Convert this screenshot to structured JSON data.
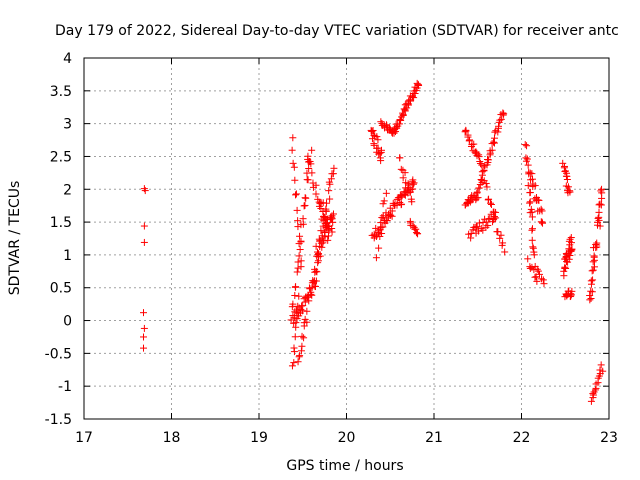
{
  "chart_data": {
    "type": "scatter",
    "title": "Day 179 of 2022, Sidereal Day-to-day VTEC variation (SDTVAR) for receiver antc",
    "xlabel": "GPS time / hours",
    "ylabel": "SDTVAR / TECUs",
    "xlim": [
      17,
      23
    ],
    "ylim": [
      -1.5,
      4
    ],
    "xticks": [
      "17",
      "18",
      "19",
      "20",
      "21",
      "22",
      "23"
    ],
    "yticks": [
      "-1.5",
      "-1",
      "-0.5",
      "0",
      "0.5",
      "1",
      "1.5",
      "2",
      "2.5",
      "3",
      "3.5",
      "4"
    ],
    "grid": true,
    "marker_color": "#ff0000",
    "series": [
      {
        "name": "SDTVAR",
        "points": [
          [
            17.69,
            2.01
          ],
          [
            17.7,
            1.98
          ],
          [
            17.69,
            1.44
          ],
          [
            17.69,
            1.19
          ],
          [
            17.68,
            0.12
          ],
          [
            17.69,
            -0.12
          ],
          [
            17.68,
            -0.25
          ],
          [
            17.68,
            -0.42
          ]
        ],
        "segments": [
          {
            "t0": 19.37,
            "t1": 19.6,
            "y0": 0.05,
            "y1": 2.6,
            "n": 28,
            "s": 0.25
          },
          {
            "t0": 19.38,
            "t1": 19.48,
            "y0": 2.75,
            "y1": 0.8,
            "n": 14,
            "s": 0.2
          },
          {
            "t0": 19.38,
            "t1": 19.45,
            "y0": -0.7,
            "y1": 0.3,
            "n": 10,
            "s": 0.15
          },
          {
            "t0": 19.4,
            "t1": 19.65,
            "y0": 0.0,
            "y1": 0.6,
            "n": 30,
            "s": 0.25
          },
          {
            "t0": 19.45,
            "t1": 19.55,
            "y0": -0.6,
            "y1": 0.1,
            "n": 12,
            "s": 0.15
          },
          {
            "t0": 19.55,
            "t1": 19.8,
            "y0": 2.5,
            "y1": 1.2,
            "n": 20,
            "s": 0.2
          },
          {
            "t0": 19.6,
            "t1": 19.85,
            "y0": 0.4,
            "y1": 2.3,
            "n": 30,
            "s": 0.3
          },
          {
            "t0": 19.65,
            "t1": 19.85,
            "y0": 1.0,
            "y1": 1.6,
            "n": 30,
            "s": 0.25
          },
          {
            "t0": 19.7,
            "t1": 19.85,
            "y0": 1.8,
            "y1": 1.4,
            "n": 14,
            "s": 0.2
          },
          {
            "t0": 20.28,
            "t1": 20.4,
            "y0": 2.9,
            "y1": 2.5,
            "n": 20,
            "s": 0.25
          },
          {
            "t0": 20.3,
            "t1": 20.4,
            "y0": 1.3,
            "y1": 1.4,
            "n": 12,
            "s": 0.15
          },
          {
            "t0": 20.35,
            "t1": 20.45,
            "y0": 1.0,
            "y1": 2.0,
            "n": 10,
            "s": 0.15
          },
          {
            "t0": 20.4,
            "t1": 20.55,
            "y0": 3.0,
            "y1": 2.85,
            "n": 20,
            "s": 0.08
          },
          {
            "t0": 20.42,
            "t1": 20.78,
            "y0": 1.5,
            "y1": 2.1,
            "n": 45,
            "s": 0.2
          },
          {
            "t0": 20.55,
            "t1": 20.82,
            "y0": 2.9,
            "y1": 3.6,
            "n": 40,
            "s": 0.1
          },
          {
            "t0": 20.6,
            "t1": 20.75,
            "y0": 2.5,
            "y1": 1.8,
            "n": 12,
            "s": 0.15
          },
          {
            "t0": 20.72,
            "t1": 20.82,
            "y0": 1.5,
            "y1": 1.3,
            "n": 10,
            "s": 0.05
          },
          {
            "t0": 21.35,
            "t1": 21.55,
            "y0": 2.9,
            "y1": 2.4,
            "n": 20,
            "s": 0.1
          },
          {
            "t0": 21.35,
            "t1": 21.5,
            "y0": 1.8,
            "y1": 1.9,
            "n": 20,
            "s": 0.1
          },
          {
            "t0": 21.4,
            "t1": 21.7,
            "y0": 1.3,
            "y1": 1.6,
            "n": 25,
            "s": 0.15
          },
          {
            "t0": 21.5,
            "t1": 21.8,
            "y0": 2.0,
            "y1": 3.2,
            "n": 35,
            "s": 0.12
          },
          {
            "t0": 21.55,
            "t1": 21.8,
            "y0": 2.2,
            "y1": 1.1,
            "n": 20,
            "s": 0.2
          },
          {
            "t0": 22.05,
            "t1": 22.15,
            "y0": 2.7,
            "y1": 0.9,
            "n": 25,
            "s": 0.2
          },
          {
            "t0": 22.08,
            "t1": 22.18,
            "y0": 0.9,
            "y1": 0.6,
            "n": 8,
            "s": 0.1
          },
          {
            "t0": 22.1,
            "t1": 22.25,
            "y0": 2.2,
            "y1": 1.5,
            "n": 20,
            "s": 0.25
          },
          {
            "t0": 22.18,
            "t1": 22.26,
            "y0": 0.8,
            "y1": 0.6,
            "n": 6,
            "s": 0.1
          },
          {
            "t0": 22.48,
            "t1": 22.55,
            "y0": 2.4,
            "y1": 1.9,
            "n": 15,
            "s": 0.15
          },
          {
            "t0": 22.48,
            "t1": 22.58,
            "y0": 0.8,
            "y1": 1.2,
            "n": 30,
            "s": 0.25
          },
          {
            "t0": 22.5,
            "t1": 22.58,
            "y0": 0.4,
            "y1": 0.4,
            "n": 12,
            "s": 0.1
          },
          {
            "t0": 22.78,
            "t1": 22.92,
            "y0": 0.4,
            "y1": 1.9,
            "n": 35,
            "s": 0.4
          },
          {
            "t0": 22.8,
            "t1": 22.92,
            "y0": -1.2,
            "y1": -0.7,
            "n": 15,
            "s": 0.15
          }
        ]
      }
    ]
  }
}
